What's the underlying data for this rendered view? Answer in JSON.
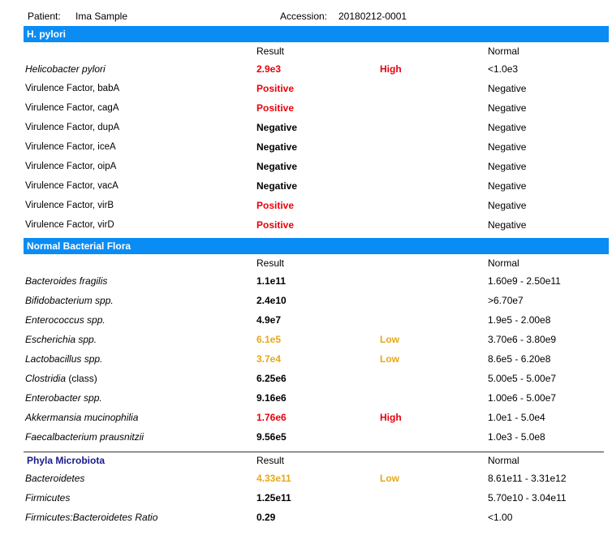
{
  "header": {
    "patient_label": "Patient:",
    "patient_name": "Ima Sample",
    "accession_label": "Accession:",
    "accession": "20180212-0001"
  },
  "sections": [
    {
      "title": "H. pylori",
      "style": "bar",
      "result_header": "Result",
      "normal_header": "Normal",
      "rows": [
        {
          "name": "Helicobacter pylori",
          "italic": true,
          "result": "2.9e3",
          "color": "#e8000b",
          "flag": "High",
          "normal": "<1.0e3"
        },
        {
          "name": "Virulence Factor, babA",
          "italic": false,
          "result": "Positive",
          "color": "#e8000b",
          "normal": "Negative"
        },
        {
          "name": "Virulence Factor, cagA",
          "italic": false,
          "result": "Positive",
          "color": "#e8000b",
          "normal": "Negative"
        },
        {
          "name": "Virulence Factor, dupA",
          "italic": false,
          "result": "Negative",
          "color": "#000000",
          "normal": "Negative"
        },
        {
          "name": "Virulence Factor, iceA",
          "italic": false,
          "result": "Negative",
          "color": "#000000",
          "normal": "Negative"
        },
        {
          "name": "Virulence Factor, oipA",
          "italic": false,
          "result": "Negative",
          "color": "#000000",
          "normal": "Negative"
        },
        {
          "name": "Virulence Factor, vacA",
          "italic": false,
          "result": "Negative",
          "color": "#000000",
          "normal": "Negative"
        },
        {
          "name": "Virulence Factor, virB",
          "italic": false,
          "result": "Positive",
          "color": "#e8000b",
          "normal": "Negative"
        },
        {
          "name": "Virulence Factor, virD",
          "italic": false,
          "result": "Positive",
          "color": "#e8000b",
          "normal": "Negative"
        }
      ]
    },
    {
      "title": "Normal Bacterial Flora",
      "style": "bar",
      "result_header": "Result",
      "normal_header": "Normal",
      "rows": [
        {
          "name": "Bacteroides fragilis",
          "italic": true,
          "result": "1.1e11",
          "color": "#000000",
          "normal": "1.60e9 - 2.50e11"
        },
        {
          "name": "Bifidobacterium spp.",
          "italic": true,
          "result": "2.4e10",
          "color": "#000000",
          "normal": ">6.70e7"
        },
        {
          "name": "Enterococcus spp.",
          "italic": true,
          "result": "4.9e7",
          "color": "#000000",
          "normal": "1.9e5 - 2.00e8"
        },
        {
          "name": "Escherichia spp.",
          "italic": true,
          "result": "6.1e5",
          "color": "#e6a817",
          "flag": "Low",
          "normal": "3.70e6 - 3.80e9"
        },
        {
          "name": "Lactobacillus spp.",
          "italic": true,
          "result": "3.7e4",
          "color": "#e6a817",
          "flag": "Low",
          "normal": "8.6e5 - 6.20e8"
        },
        {
          "name": "Clostridia",
          "note": "(class)",
          "italic": true,
          "result": "6.25e6",
          "color": "#000000",
          "normal": "5.00e5 - 5.00e7"
        },
        {
          "name": "Enterobacter spp.",
          "italic": true,
          "result": "9.16e6",
          "color": "#000000",
          "normal": "1.00e6 - 5.00e7"
        },
        {
          "name": "Akkermansia mucinophilia",
          "italic": true,
          "result": "1.76e6",
          "color": "#e8000b",
          "flag": "High",
          "normal": "1.0e1 - 5.0e4"
        },
        {
          "name": "Faecalbacterium prausnitzii",
          "italic": true,
          "result": "9.56e5",
          "color": "#000000",
          "normal": "1.0e3 - 5.0e8"
        }
      ]
    },
    {
      "title": "Phyla Microbiota",
      "style": "rule",
      "result_header": "Result",
      "normal_header": "Normal",
      "rows": [
        {
          "name": "Bacteroidetes",
          "italic": true,
          "result": "4.33e11",
          "color": "#e6a817",
          "flag": "Low",
          "normal": "8.61e11 - 3.31e12"
        },
        {
          "name": "Firmicutes",
          "italic": true,
          "result": "1.25e11",
          "color": "#000000",
          "normal": "5.70e10 - 3.04e11"
        },
        {
          "name": "Firmicutes:Bacteroidetes Ratio",
          "italic": true,
          "result": "0.29",
          "color": "#000000",
          "normal": "<1.00"
        }
      ]
    }
  ]
}
